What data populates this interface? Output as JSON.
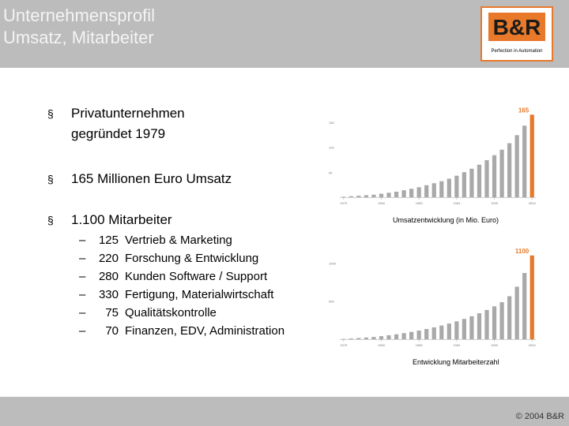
{
  "header": {
    "title_line1": "Unternehmensprofil",
    "title_line2": "Umsatz, Mitarbeiter"
  },
  "logo": {
    "mark": "B&R",
    "tagline": "Perfection in Automation",
    "color": "#e8792a"
  },
  "bullets": [
    {
      "marker": "§",
      "line1": "Privatunternehmen",
      "line2": "gegründet 1979"
    },
    {
      "marker": "§",
      "line1": "165 Millionen Euro Umsatz"
    },
    {
      "marker": "§",
      "line1": "1.100 Mitarbeiter"
    }
  ],
  "employees": [
    {
      "dash": "–",
      "count": "125",
      "label": "Vertrieb & Marketing"
    },
    {
      "dash": "–",
      "count": "220",
      "label": "Forschung & Entwicklung"
    },
    {
      "dash": "–",
      "count": "280",
      "label": "Kunden Software / Support"
    },
    {
      "dash": "–",
      "count": "330",
      "label": "Fertigung, Materialwirtschaft"
    },
    {
      "dash": "–",
      "count": "75",
      "label": "Qualitätskontrolle"
    },
    {
      "dash": "–",
      "count": "70",
      "label": "Finanzen, EDV, Administration"
    }
  ],
  "chart_data": [
    {
      "type": "bar",
      "title": "Umsatzentwicklung (in Mio. Euro)",
      "categories": [
        "1979",
        "1980",
        "1981",
        "1982",
        "1983",
        "1984",
        "1985",
        "1986",
        "1987",
        "1988",
        "1989",
        "1990",
        "1991",
        "1992",
        "1993",
        "1994",
        "1995",
        "1996",
        "1997",
        "1998",
        "1999",
        "2000",
        "2001",
        "2002",
        "2003",
        "2004"
      ],
      "values": [
        1,
        2,
        3,
        4,
        5,
        7,
        9,
        11,
        14,
        17,
        20,
        24,
        28,
        32,
        37,
        43,
        50,
        57,
        65,
        74,
        84,
        95,
        108,
        124,
        143,
        165
      ],
      "x_tick_labels": [
        "1979",
        "1984",
        "1989",
        "1994",
        "1999",
        "2004"
      ],
      "y_tick_labels": [
        "50",
        "100",
        "150"
      ],
      "highlight_label": "165",
      "highlight_color": "#e8792a",
      "bar_color": "#a9a9a9",
      "ylim": [
        0,
        175
      ]
    },
    {
      "type": "bar",
      "title": "Entwicklung Mitarbeiterzahl",
      "categories": [
        "1979",
        "1980",
        "1981",
        "1982",
        "1983",
        "1984",
        "1985",
        "1986",
        "1987",
        "1988",
        "1989",
        "1990",
        "1991",
        "1992",
        "1993",
        "1994",
        "1995",
        "1996",
        "1997",
        "1998",
        "1999",
        "2000",
        "2001",
        "2002",
        "2003",
        "2004"
      ],
      "values": [
        5,
        10,
        15,
        22,
        30,
        40,
        52,
        65,
        80,
        96,
        114,
        134,
        156,
        180,
        206,
        235,
        267,
        302,
        341,
        384,
        432,
        486,
        565,
        690,
        870,
        1100
      ],
      "x_tick_labels": [
        "1979",
        "1984",
        "1989",
        "1994",
        "1999",
        "2004"
      ],
      "y_tick_labels": [
        "500",
        "1000"
      ],
      "highlight_label": "1100",
      "highlight_color": "#e8792a",
      "bar_color": "#a9a9a9",
      "ylim": [
        0,
        1150
      ]
    }
  ],
  "footer": {
    "copyright": "© 2004 B&R"
  }
}
